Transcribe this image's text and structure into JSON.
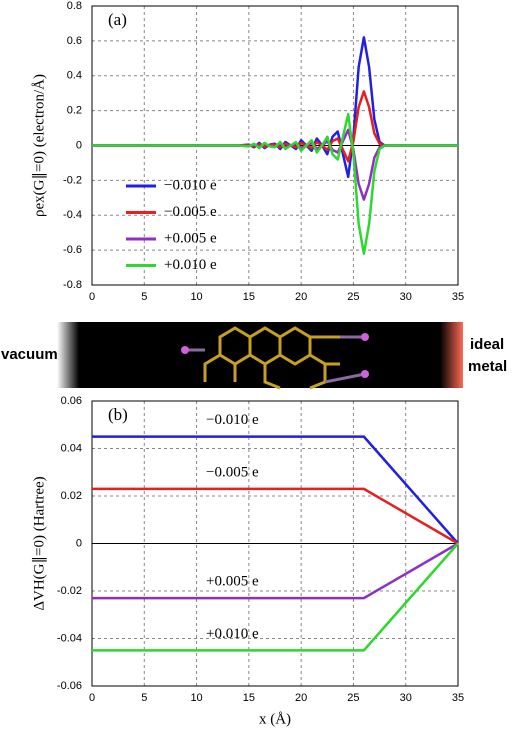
{
  "chart_data": [
    {
      "type": "line",
      "panel_label": "(a)",
      "ylabel": "ρex(G∥=0) (electron/Å)",
      "x": [
        0,
        14,
        15,
        15.5,
        16,
        16.5,
        17,
        17.5,
        18,
        18.5,
        19,
        19.5,
        20,
        20.5,
        21,
        21.5,
        22,
        22.5,
        23,
        23.5,
        24,
        24.5,
        25,
        25.5,
        26,
        26.5,
        27,
        27.5,
        28,
        29,
        35
      ],
      "series": [
        {
          "name": "−0.010 e",
          "color": "#1f1fe6",
          "values": [
            0,
            0,
            0.005,
            -0.01,
            0.015,
            -0.015,
            0.005,
            0.01,
            -0.02,
            0.02,
            0,
            -0.02,
            0.03,
            0,
            -0.03,
            0.04,
            0,
            -0.05,
            0.05,
            0.08,
            -0.05,
            -0.18,
            0.05,
            0.45,
            0.62,
            0.45,
            0.15,
            0.02,
            0,
            0,
            0
          ]
        },
        {
          "name": "−0.005 e",
          "color": "#e61f1f",
          "values": [
            0,
            0,
            0.003,
            -0.005,
            0.008,
            -0.008,
            0.003,
            0.005,
            -0.01,
            0.01,
            0,
            -0.01,
            0.015,
            0,
            -0.015,
            0.02,
            0,
            -0.025,
            0.025,
            0.04,
            -0.025,
            -0.09,
            0.025,
            0.22,
            0.31,
            0.22,
            0.07,
            0.01,
            0,
            0,
            0
          ]
        },
        {
          "name": "+0.005 e",
          "color": "#8f2fc8",
          "values": [
            0,
            0,
            -0.003,
            0.005,
            -0.008,
            0.008,
            -0.003,
            -0.005,
            0.01,
            -0.01,
            0,
            0.01,
            -0.015,
            0,
            0.015,
            -0.02,
            0,
            0.025,
            -0.025,
            -0.04,
            0.025,
            0.09,
            -0.025,
            -0.22,
            -0.31,
            -0.22,
            -0.07,
            -0.01,
            0,
            0,
            0
          ]
        },
        {
          "name": "+0.010 e",
          "color": "#2ed82e",
          "values": [
            0,
            0,
            -0.005,
            0.01,
            -0.015,
            0.015,
            -0.005,
            -0.01,
            0.02,
            -0.02,
            0,
            0.02,
            -0.03,
            0,
            0.03,
            -0.04,
            0,
            0.05,
            -0.05,
            -0.08,
            0.05,
            0.18,
            -0.05,
            -0.45,
            -0.62,
            -0.45,
            -0.15,
            -0.02,
            0,
            0,
            0
          ]
        }
      ],
      "xlim": [
        0,
        35
      ],
      "xticks": [
        0,
        5,
        10,
        15,
        20,
        25,
        30,
        35
      ],
      "ylim": [
        -0.8,
        0.8
      ],
      "yticks": [
        -0.8,
        -0.6,
        -0.4,
        -0.2,
        0,
        0.2,
        0.4,
        0.6,
        0.8
      ],
      "grid": true,
      "legend": "left"
    },
    {
      "type": "line",
      "panel_label": "(b)",
      "ylabel": "ΔVH(G∥=0) (Hartree)",
      "xlabel": "x (Å)",
      "x": [
        0,
        25,
        26,
        35
      ],
      "series": [
        {
          "name": "−0.010 e",
          "color": "#1f1fe6",
          "values": [
            0.045,
            0.045,
            0.045,
            0
          ]
        },
        {
          "name": "−0.005 e",
          "color": "#e61f1f",
          "values": [
            0.023,
            0.023,
            0.023,
            0
          ]
        },
        {
          "name": "+0.005 e",
          "color": "#8f2fc8",
          "values": [
            -0.023,
            -0.023,
            -0.023,
            0
          ]
        },
        {
          "name": "+0.010 e",
          "color": "#2ed82e",
          "values": [
            -0.045,
            -0.045,
            -0.045,
            0
          ]
        }
      ],
      "xlim": [
        0,
        35
      ],
      "xticks": [
        0,
        5,
        10,
        15,
        20,
        25,
        30,
        35
      ],
      "ylim": [
        -0.06,
        0.06
      ],
      "yticks": [
        -0.06,
        -0.04,
        -0.02,
        0,
        0.02,
        0.04,
        0.06
      ],
      "grid": true,
      "legend": "on-lines"
    }
  ],
  "illustration": {
    "left": "vacuum",
    "right_top": "ideal",
    "right_bottom": "metal"
  }
}
